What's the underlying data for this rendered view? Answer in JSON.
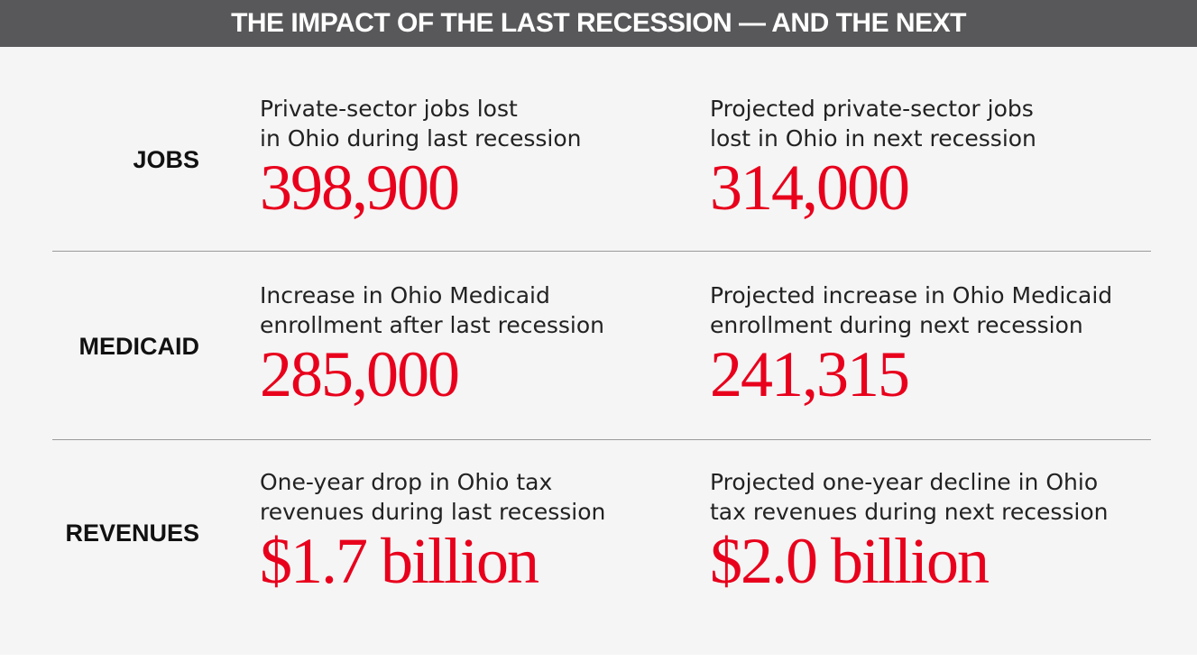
{
  "title": "THE IMPACT OF THE LAST RECESSION — AND THE NEXT",
  "rows": [
    {
      "label": "JOBS",
      "last": {
        "desc_line1": "Private-sector jobs lost",
        "desc_line2": "in Ohio during last recession",
        "value": "398,900"
      },
      "next": {
        "desc_line1": "Projected private-sector jobs",
        "desc_line2": "lost in Ohio in next recession",
        "value": "314,000"
      }
    },
    {
      "label": "MEDICAID",
      "last": {
        "desc_line1": "Increase in Ohio Medicaid",
        "desc_line2": "enrollment after last recession",
        "value": "285,000"
      },
      "next": {
        "desc_line1": "Projected increase in Ohio Medicaid",
        "desc_line2": "enrollment during next recession",
        "value": "241,315"
      }
    },
    {
      "label": "REVENUES",
      "last": {
        "desc_line1": "One-year drop in Ohio tax",
        "desc_line2": "revenues during last recession",
        "value": "$1.7 billion"
      },
      "next": {
        "desc_line1": "Projected one-year decline in Ohio",
        "desc_line2": "tax revenues during next recession",
        "value": "$2.0 billion"
      }
    }
  ],
  "colors": {
    "header_bg": "#58585a",
    "panel_bg": "#f5f5f5",
    "value": "#e8001c",
    "divider": "#9a9a9a"
  }
}
